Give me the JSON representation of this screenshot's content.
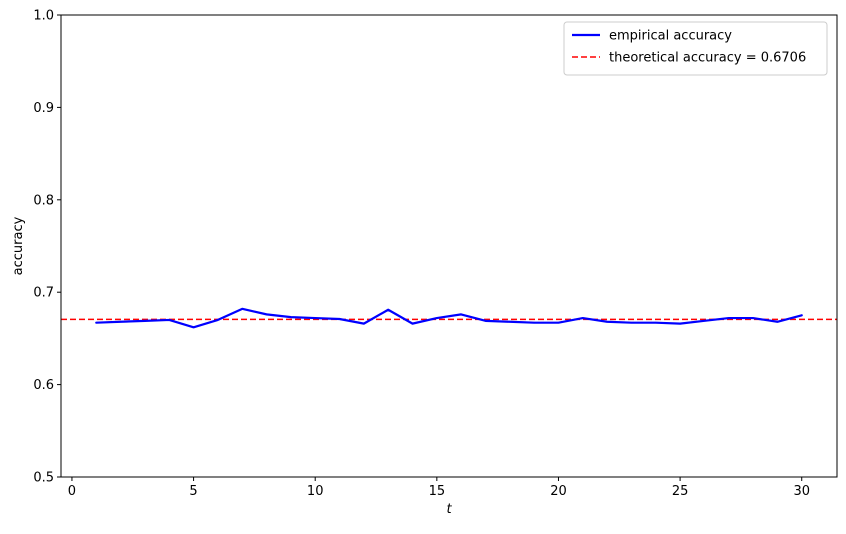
{
  "chart_data": {
    "type": "line",
    "title": "",
    "xlabel": "t",
    "ylabel": "accuracy",
    "xlim": [
      -0.45,
      31.45
    ],
    "ylim": [
      0.5,
      1.0
    ],
    "x_ticks": [
      0,
      5,
      10,
      15,
      20,
      25,
      30
    ],
    "y_ticks": [
      0.5,
      0.6,
      0.7,
      0.8,
      0.9,
      1.0
    ],
    "x_tick_labels": [
      "0",
      "5",
      "10",
      "15",
      "20",
      "25",
      "30"
    ],
    "y_tick_labels": [
      "0.5",
      "0.6",
      "0.7",
      "0.8",
      "0.9",
      "1.0"
    ],
    "grid": false,
    "legend_position": "top-right",
    "x": [
      1,
      2,
      3,
      4,
      5,
      6,
      7,
      8,
      9,
      10,
      11,
      12,
      13,
      14,
      15,
      16,
      17,
      18,
      19,
      20,
      21,
      22,
      23,
      24,
      25,
      26,
      27,
      28,
      29,
      30
    ],
    "series": [
      {
        "name": "empirical accuracy",
        "color": "#0000ff",
        "style": "solid",
        "values": [
          0.667,
          0.668,
          0.669,
          0.67,
          0.662,
          0.67,
          0.682,
          0.676,
          0.673,
          0.672,
          0.671,
          0.666,
          0.681,
          0.666,
          0.672,
          0.676,
          0.669,
          0.668,
          0.667,
          0.667,
          0.672,
          0.668,
          0.667,
          0.667,
          0.666,
          0.669,
          0.672,
          0.672,
          0.668,
          0.675
        ]
      }
    ],
    "reference_lines": [
      {
        "name": "theoretical accuracy = 0.6706",
        "value": 0.6706,
        "color": "#ff0000",
        "style": "dashed"
      }
    ]
  }
}
